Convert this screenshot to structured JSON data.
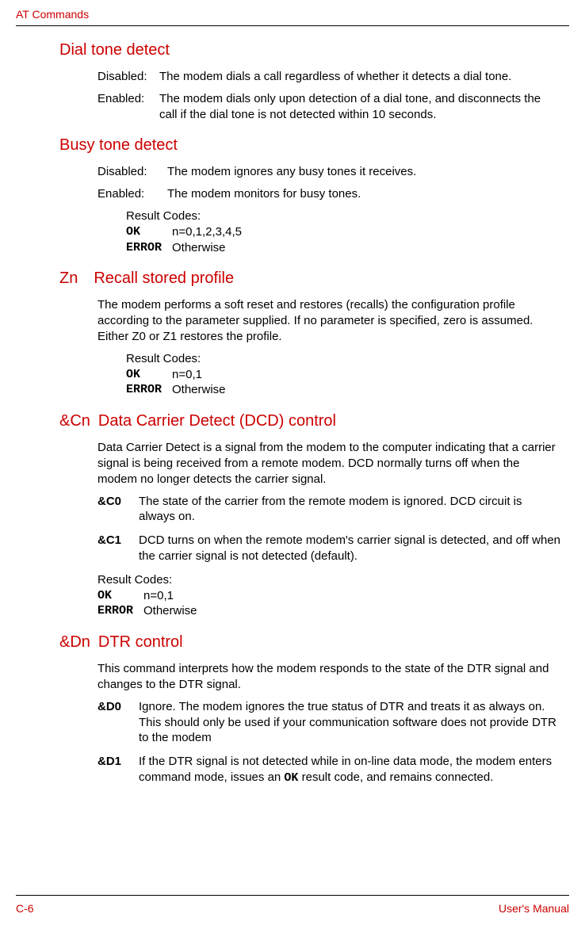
{
  "header": {
    "title": "AT Commands"
  },
  "sections": {
    "dialTone": {
      "title": "Dial tone detect",
      "disabledLabel": "Disabled:",
      "disabledText": "The modem dials a call regardless of whether it detects a dial tone.",
      "enabledLabel": "Enabled:",
      "enabledText": "The modem dials only upon detection of a dial tone, and disconnects the call if the dial tone is not detected within 10 seconds."
    },
    "busyTone": {
      "title": "Busy tone detect",
      "disabledLabel": "Disabled:",
      "disabledText": "The modem ignores any busy tones it receives.",
      "enabledLabel": "Enabled:",
      "enabledText": "The modem monitors for busy tones.",
      "resultLabel": "Result Codes:",
      "okCode": "OK",
      "okText": "n=0,1,2,3,4,5",
      "errorCode": "ERROR",
      "errorText": "Otherwise"
    },
    "zn": {
      "title": "Zn Recall stored profile",
      "para": "The modem performs a soft reset and restores (recalls) the configuration profile according to the parameter supplied. If no parameter is specified, zero is assumed. Either Z0 or Z1 restores the profile.",
      "resultLabel": "Result Codes:",
      "okCode": "OK",
      "okText": "n=0,1",
      "errorCode": "ERROR",
      "errorText": "Otherwise"
    },
    "cn": {
      "title": "&Cn Data Carrier Detect (DCD) control",
      "para": "Data Carrier Detect is a signal from the modem to the computer indicating that a carrier signal is being received from a remote modem. DCD normally turns off when the modem no longer detects the carrier signal.",
      "c0Label": "&C0",
      "c0Text": "The state of the carrier from the remote modem is ignored. DCD circuit is always on.",
      "c1Label": "&C1",
      "c1Text": "DCD turns on when the remote modem's carrier signal is detected, and off when the carrier signal is not detected (default).",
      "resultLabel": "Result Codes:",
      "okCode": "OK",
      "okText": "n=0,1",
      "errorCode": "ERROR",
      "errorText": "Otherwise"
    },
    "dn": {
      "title": "&Dn DTR control",
      "para": "This command interprets how the modem responds to the state of the DTR signal and changes to the DTR signal.",
      "d0Label": "&D0",
      "d0Text": "Ignore. The modem ignores the true status of DTR and treats it as always on. This should only be used if your communication software does not provide DTR to the modem",
      "d1Label": "&D1",
      "d1TextPre": "If the DTR signal is not detected while in on-line data mode, the modem enters command mode, issues an ",
      "d1Code": "OK",
      "d1TextPost": " result code, and remains connected."
    }
  },
  "footer": {
    "left": "C-6",
    "right": "User's Manual"
  }
}
